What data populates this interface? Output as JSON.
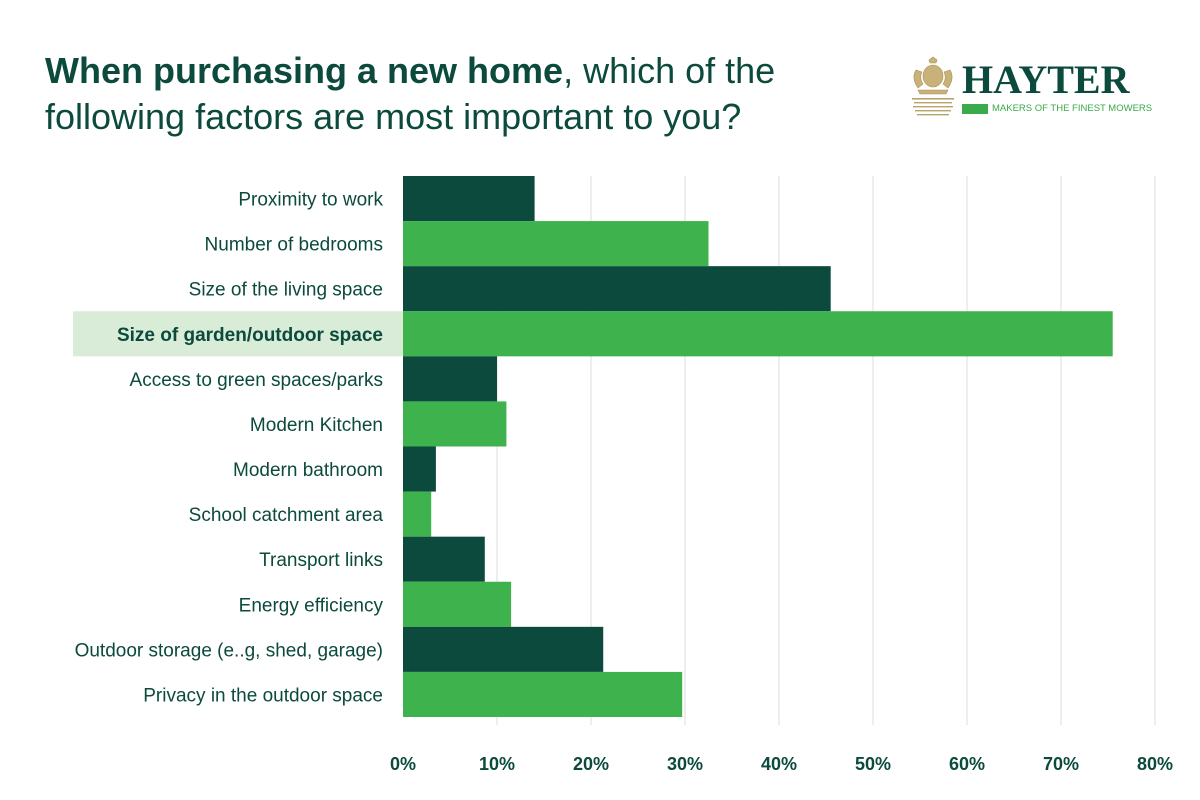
{
  "header": {
    "title_bold": "When purchasing a new home",
    "title_rest": ", which of the following factors are most important to you?"
  },
  "logo": {
    "brand": "HAYTER",
    "tagline": "MAKERS OF THE FINEST MOWERS"
  },
  "colors": {
    "dark_bar": "#0b4a3c",
    "light_bar": "#3eb24d",
    "highlight": "#d8ecd7",
    "grid": "#dcdcdc",
    "text": "#0b4a3c"
  },
  "chart_data": {
    "type": "bar",
    "orientation": "horizontal",
    "categories": [
      "Proximity to work",
      "Number of bedrooms",
      "Size of the living space",
      "Size of garden/outdoor space",
      "Access to green spaces/parks",
      "Modern Kitchen",
      "Modern bathroom",
      "School catchment area",
      "Transport links",
      "Energy efficiency",
      "Outdoor storage (e..g, shed, garage)",
      "Privacy in the outdoor space"
    ],
    "values": [
      14,
      32.5,
      45.5,
      75.5,
      10,
      11,
      3.5,
      3,
      8.7,
      11.5,
      21.3,
      29.7
    ],
    "highlighted_category": "Size of garden/outdoor space",
    "xlim": [
      0,
      80
    ],
    "xticks": [
      0,
      10,
      20,
      30,
      40,
      50,
      60,
      70,
      80
    ],
    "xtick_labels": [
      "0%",
      "10%",
      "20%",
      "30%",
      "40%",
      "50%",
      "60%",
      "70%",
      "80%"
    ],
    "grid": true,
    "title": "",
    "xlabel": "",
    "ylabel": ""
  }
}
